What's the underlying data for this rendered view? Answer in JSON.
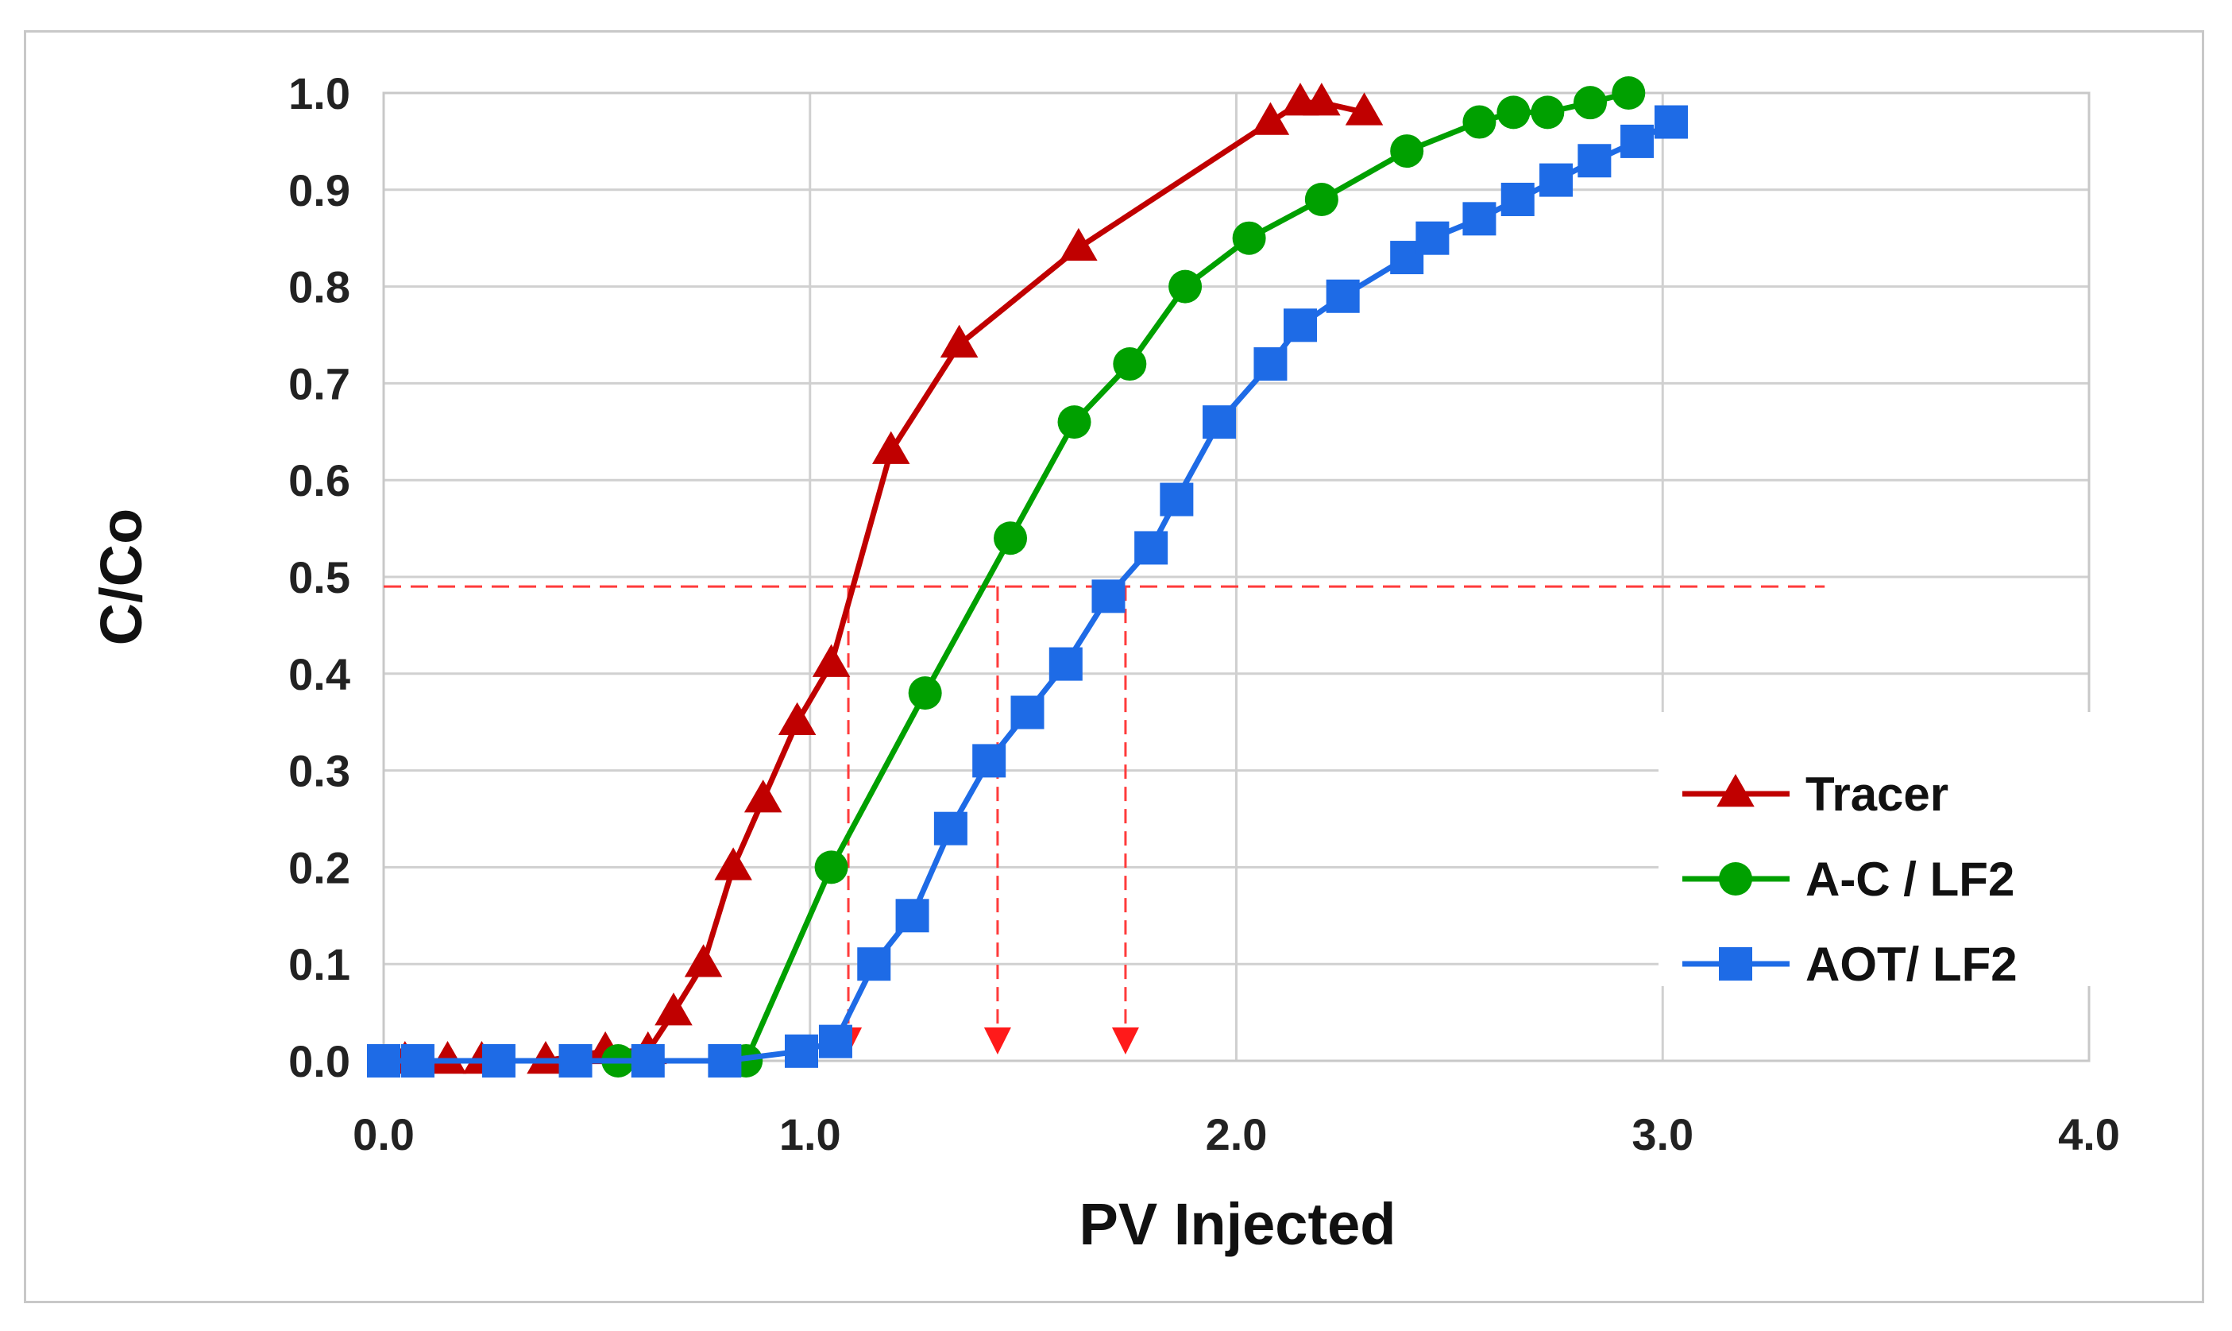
{
  "chart_data": {
    "type": "line",
    "title": "",
    "xlabel": "PV Injected",
    "ylabel": "C/Co",
    "xlim": [
      0,
      4
    ],
    "ylim": [
      0,
      1
    ],
    "grid": true,
    "legend_position": "bottom-right",
    "xticks": [
      "0.0",
      "1.0",
      "2.0",
      "3.0",
      "4.0"
    ],
    "yticks": [
      "0.0",
      "0.1",
      "0.2",
      "0.3",
      "0.4",
      "0.5",
      "0.6",
      "0.7",
      "0.8",
      "0.9",
      "1.0"
    ],
    "series": [
      {
        "name": "Tracer",
        "color": "#c00000",
        "marker": "triangle",
        "x": [
          0.05,
          0.15,
          0.23,
          0.38,
          0.52,
          0.62,
          0.68,
          0.75,
          0.82,
          0.89,
          0.97,
          1.05,
          1.19,
          1.35,
          1.63,
          2.08,
          2.15,
          2.2,
          2.3
        ],
        "y": [
          0.0,
          0.0,
          0.0,
          0.0,
          0.01,
          0.01,
          0.05,
          0.1,
          0.2,
          0.27,
          0.35,
          0.41,
          0.63,
          0.74,
          0.84,
          0.97,
          0.99,
          0.99,
          0.98
        ]
      },
      {
        "name": "A-C / LF2",
        "color": "#00a000",
        "marker": "circle",
        "x": [
          0.55,
          0.85,
          1.05,
          1.27,
          1.47,
          1.62,
          1.75,
          1.88,
          2.03,
          2.2,
          2.4,
          2.57,
          2.65,
          2.73,
          2.83,
          2.92
        ],
        "y": [
          0.0,
          0.0,
          0.2,
          0.38,
          0.54,
          0.66,
          0.72,
          0.8,
          0.85,
          0.89,
          0.94,
          0.97,
          0.98,
          0.98,
          0.99,
          1.0
        ]
      },
      {
        "name": "AOT/ LF2",
        "color": "#1e6be6",
        "marker": "square",
        "x": [
          0.0,
          0.08,
          0.27,
          0.45,
          0.62,
          0.8,
          0.98,
          1.06,
          1.15,
          1.24,
          1.33,
          1.42,
          1.51,
          1.6,
          1.7,
          1.8,
          1.86,
          1.96,
          2.08,
          2.15,
          2.25,
          2.4,
          2.46,
          2.57,
          2.66,
          2.75,
          2.84,
          2.94,
          3.02
        ],
        "y": [
          0.0,
          0.0,
          0.0,
          0.0,
          0.0,
          0.0,
          0.01,
          0.02,
          0.1,
          0.15,
          0.24,
          0.31,
          0.36,
          0.41,
          0.48,
          0.53,
          0.58,
          0.66,
          0.72,
          0.76,
          0.79,
          0.83,
          0.85,
          0.87,
          0.89,
          0.91,
          0.93,
          0.95,
          0.97
        ]
      }
    ],
    "annotations": {
      "half_line_y": 0.49,
      "half_line_x_end": 3.38,
      "drop_lines_x": [
        1.09,
        1.44,
        1.74
      ]
    }
  }
}
